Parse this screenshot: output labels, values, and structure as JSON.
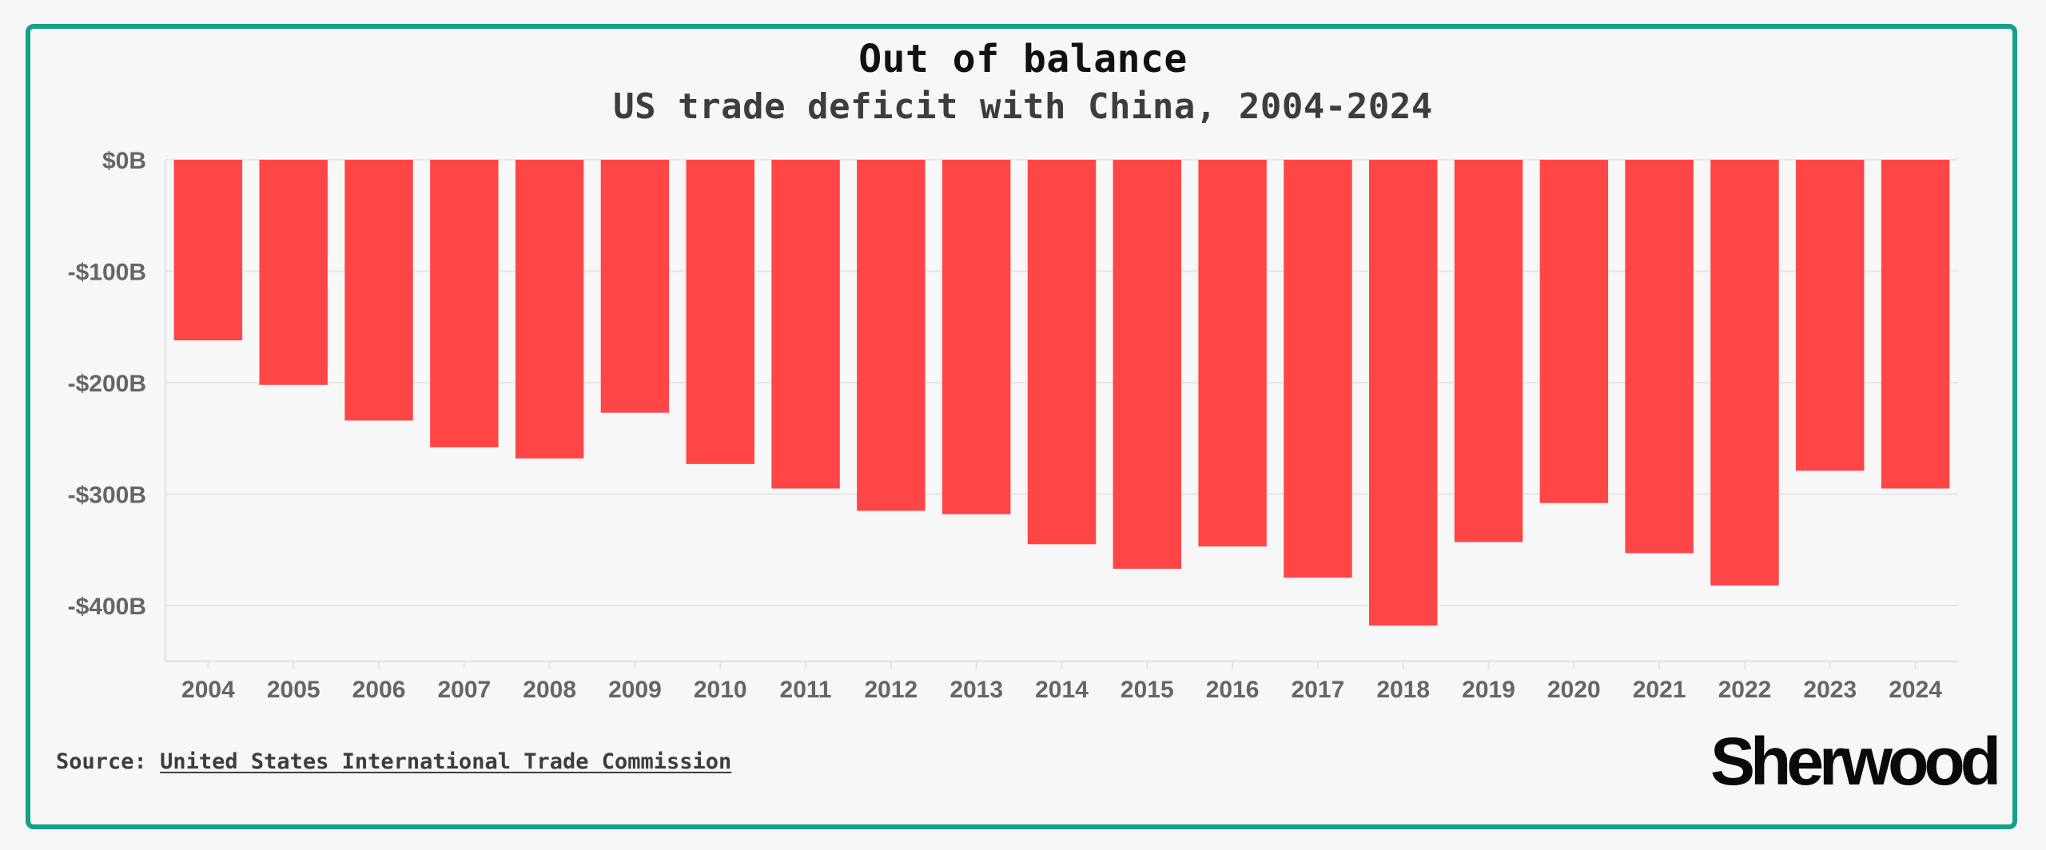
{
  "header": {
    "title": "Out of balance",
    "subtitle": "US trade deficit with China, 2004-2024"
  },
  "footer": {
    "source_label": "Source:",
    "source_link": "United States International Trade Commission",
    "brand": "Sherwood"
  },
  "colors": {
    "bar": "#ff4646",
    "border": "#16a08a",
    "background": "#f7f7f7",
    "grid": "#e6e6e6",
    "tick_text": "#666666"
  },
  "chart_data": {
    "type": "bar",
    "title": "Out of balance",
    "subtitle": "US trade deficit with China, 2004-2024",
    "xlabel": "",
    "ylabel": "",
    "categories": [
      "2004",
      "2005",
      "2006",
      "2007",
      "2008",
      "2009",
      "2010",
      "2011",
      "2012",
      "2013",
      "2014",
      "2015",
      "2016",
      "2017",
      "2018",
      "2019",
      "2020",
      "2021",
      "2022",
      "2023",
      "2024"
    ],
    "values": [
      -162,
      -202,
      -234,
      -258,
      -268,
      -227,
      -273,
      -295,
      -315,
      -318,
      -345,
      -367,
      -347,
      -375,
      -418,
      -343,
      -308,
      -353,
      -382,
      -279,
      -295
    ],
    "ylim": [
      -450,
      0
    ],
    "yticks": [
      0,
      -100,
      -200,
      -300,
      -400
    ],
    "ytick_labels": [
      "$0B",
      "-$100B",
      "-$200B",
      "-$300B",
      "-$400B"
    ],
    "grid": true,
    "legend": "none"
  }
}
